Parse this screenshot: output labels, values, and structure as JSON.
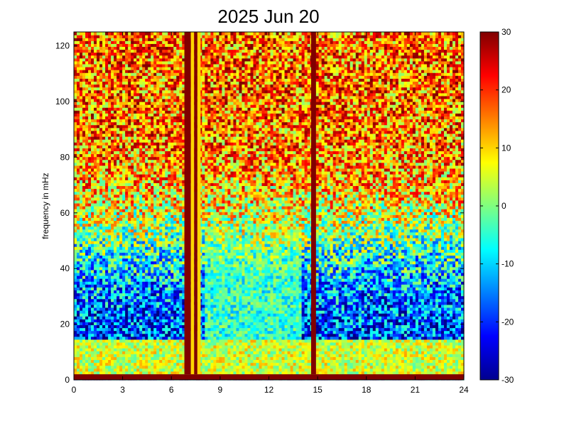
{
  "chart_data": {
    "type": "heatmap",
    "title": "2025 Jun 20",
    "xlabel": "",
    "ylabel": "frequency in mHz",
    "xlim": [
      0,
      24
    ],
    "ylim": [
      0,
      125
    ],
    "x_ticks": [
      "0",
      "3",
      "6",
      "9",
      "12",
      "15",
      "18",
      "21",
      "24"
    ],
    "y_ticks": [
      "0",
      "20",
      "40",
      "60",
      "80",
      "100",
      "120"
    ],
    "colorbar": {
      "colormap": "jet",
      "clim": [
        -30,
        30
      ],
      "ticks": [
        "30",
        "20",
        "10",
        "0",
        "-10",
        "-20",
        "-30"
      ]
    },
    "features": [
      {
        "kind": "vertical-band",
        "x_range": [
          6.8,
          7.2
        ],
        "value": 30
      },
      {
        "kind": "vertical-band",
        "x_range": [
          7.2,
          7.4
        ],
        "value": 10
      },
      {
        "kind": "vertical-band",
        "x_range": [
          7.4,
          7.6
        ],
        "value": 30
      },
      {
        "kind": "vertical-band",
        "x_range": [
          7.6,
          7.8
        ],
        "value": 10
      },
      {
        "kind": "vertical-band",
        "x_range": [
          14.6,
          14.9
        ],
        "value": 30
      },
      {
        "kind": "horizontal-band",
        "y_range": [
          0,
          2
        ],
        "value": 30
      },
      {
        "kind": "low-frequency-activity",
        "y_range": [
          2,
          15
        ],
        "value": 5
      },
      {
        "kind": "daytime-enhancement",
        "x_range": [
          8,
          14
        ],
        "y_range": [
          15,
          75
        ],
        "value": -5
      }
    ]
  }
}
